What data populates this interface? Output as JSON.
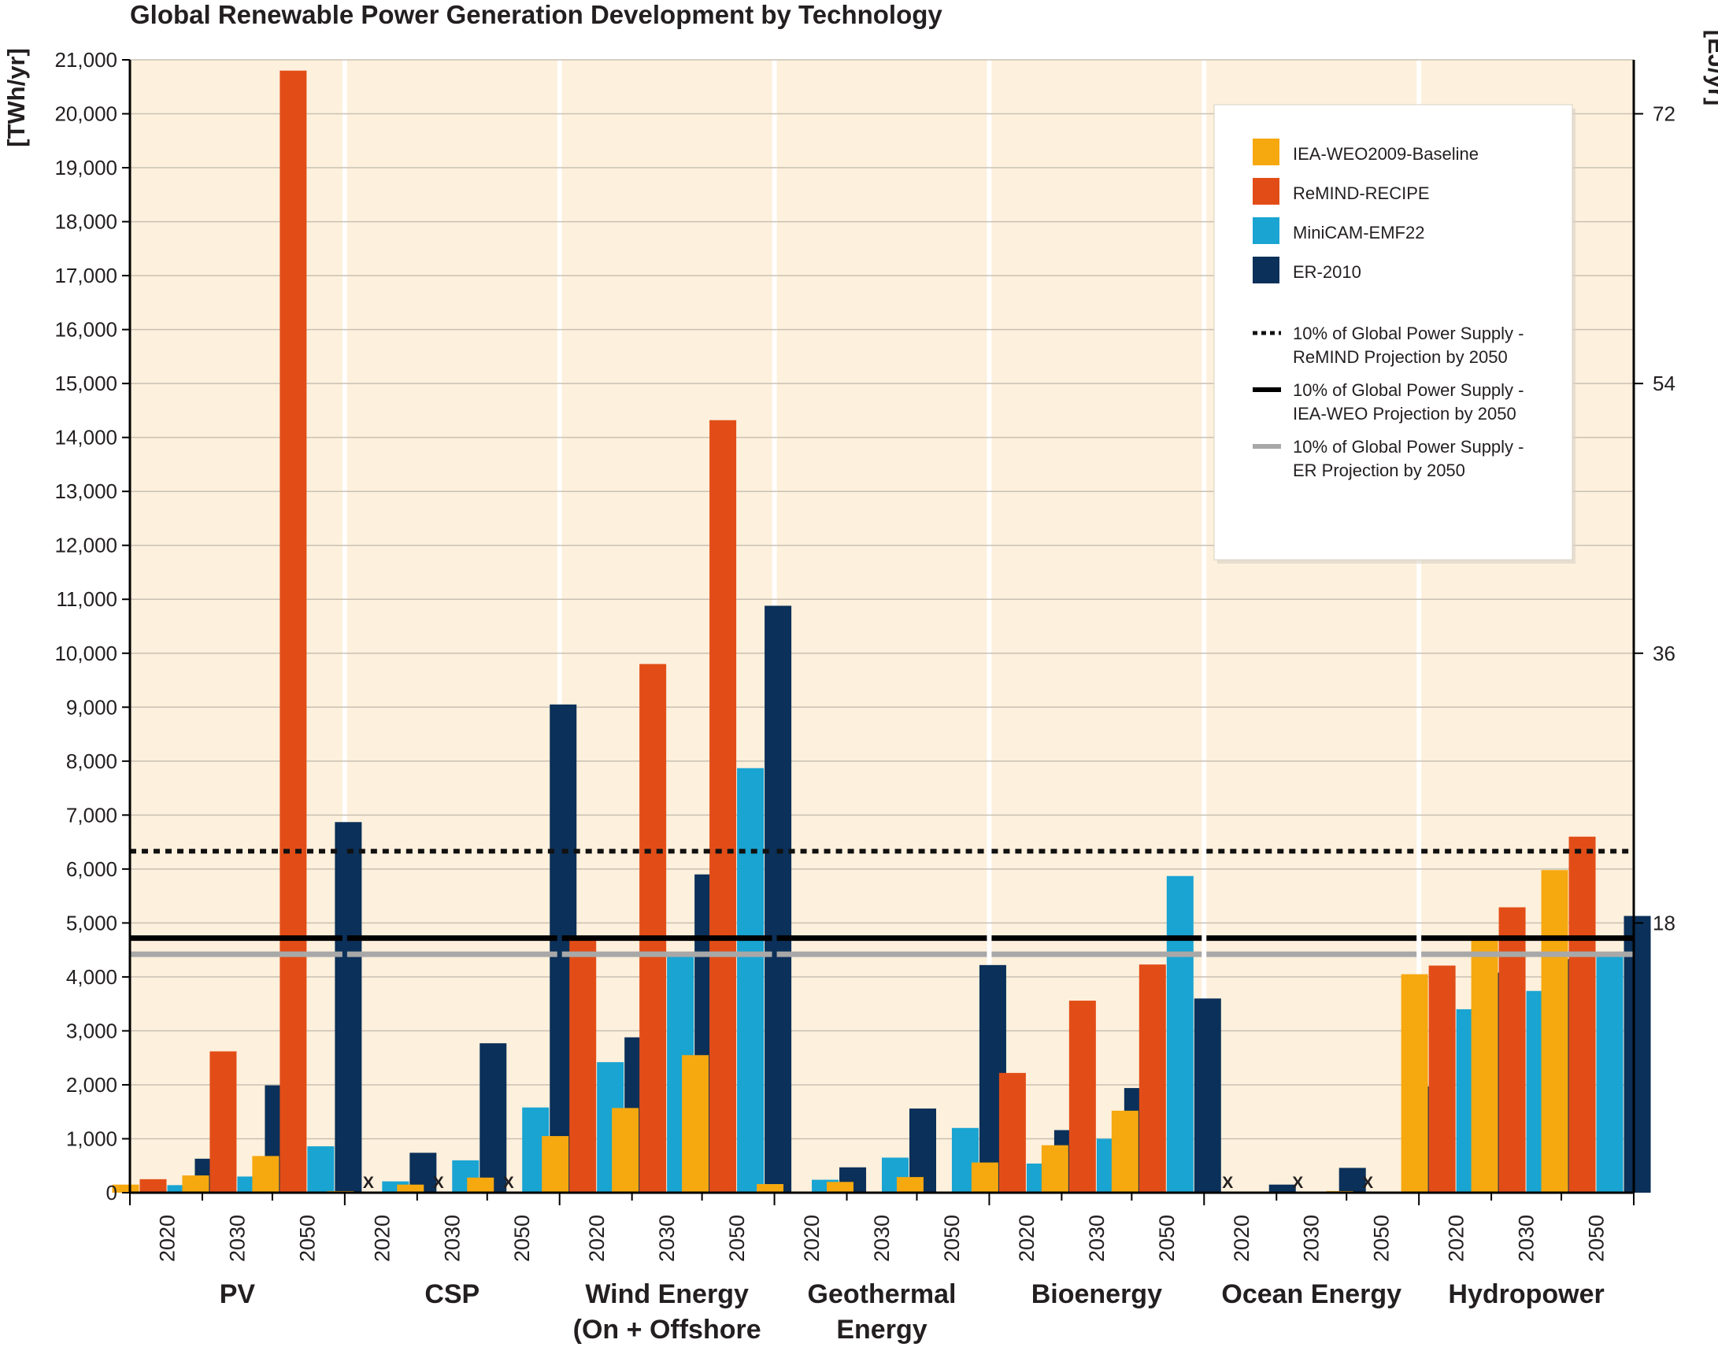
{
  "chart_data": {
    "type": "bar",
    "title": "Global Renewable Power Generation Development by Technology",
    "ylabel_left": "[TWh/yr]",
    "ylabel_right": "[EJ/yr]",
    "ylim": [
      0,
      21000
    ],
    "yticks_left": [
      0,
      1000,
      2000,
      3000,
      4000,
      5000,
      6000,
      7000,
      8000,
      9000,
      10000,
      11000,
      12000,
      13000,
      14000,
      15000,
      16000,
      17000,
      18000,
      19000,
      20000,
      21000
    ],
    "yticks_left_labels": [
      "0",
      "1,000",
      "2,000",
      "3,000",
      "4,000",
      "5,000",
      "6,000",
      "7,000",
      "8,000",
      "9,000",
      "10,000",
      "11,000",
      "12,000",
      "13,000",
      "14,000",
      "15,000",
      "16,000",
      "17,000",
      "18,000",
      "19,000",
      "20,000",
      "21,000"
    ],
    "yticks_right": [
      {
        "label": "18",
        "value_twh": 5000
      },
      {
        "label": "36",
        "value_twh": 10000
      },
      {
        "label": "54",
        "value_twh": 15000
      },
      {
        "label": "72",
        "value_twh": 20000
      }
    ],
    "groups": [
      "PV",
      "CSP",
      "Wind Energy|(On + Offshore",
      "Geothermal|Energy",
      "Bioenergy",
      "Ocean Energy",
      "Hydropower"
    ],
    "years": [
      "2020",
      "2030",
      "2050"
    ],
    "series": [
      {
        "name": "IEA-WEO2009-Baseline",
        "color": "#f6a80f",
        "values": [
          [
            150,
            320,
            680
          ],
          [
            30,
            150,
            280
          ],
          [
            1050,
            1570,
            2550
          ],
          [
            160,
            200,
            290
          ],
          [
            560,
            880,
            1520
          ],
          [
            5,
            10,
            30
          ],
          [
            4050,
            4700,
            5980
          ]
        ]
      },
      {
        "name": "ReMIND-RECIPE",
        "color": "#e24d17",
        "values": [
          [
            250,
            2620,
            20800
          ],
          [
            null,
            null,
            null
          ],
          [
            4720,
            9800,
            14320
          ],
          [
            0,
            0,
            0
          ],
          [
            2220,
            3560,
            4230
          ],
          [
            null,
            null,
            null
          ],
          [
            4210,
            5290,
            6600
          ]
        ]
      },
      {
        "name": "MiniCAM-EMF22",
        "color": "#19a4d2",
        "values": [
          [
            140,
            300,
            860
          ],
          [
            210,
            600,
            1580
          ],
          [
            2420,
            4460,
            7870
          ],
          [
            240,
            650,
            1200
          ],
          [
            540,
            1000,
            5870
          ],
          [
            0,
            0,
            0
          ],
          [
            3400,
            3740,
            4450
          ]
        ]
      },
      {
        "name": "ER-2010",
        "color": "#0b3059",
        "values": [
          [
            630,
            1990,
            6870
          ],
          [
            740,
            2770,
            9050
          ],
          [
            2880,
            5900,
            10880
          ],
          [
            470,
            1560,
            4220
          ],
          [
            1160,
            1940,
            3600
          ],
          [
            150,
            460,
            1970
          ],
          [
            4080,
            4330,
            5130
          ]
        ]
      }
    ],
    "missing_marker": "X",
    "reference_lines": [
      {
        "name": "10% of Global Power Supply -|ReMIND Projection by 2050",
        "value": 6330,
        "style": "dotted",
        "color": "#111111"
      },
      {
        "name": "10% of Global Power Supply -|IEA-WEO Projection by 2050",
        "value": 4720,
        "style": "solid",
        "color": "#000000"
      },
      {
        "name": "10% of Global Power Supply -|ER Projection by 2050",
        "value": 4420,
        "style": "solid",
        "color": "#a8a8a8"
      }
    ],
    "plot_background": "#fdf0dc",
    "grid": true,
    "legend_position": "top-right"
  }
}
